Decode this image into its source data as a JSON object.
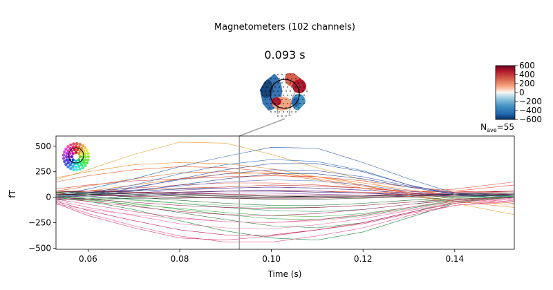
{
  "figure": {
    "title": "Magnetometers (102 channels)",
    "time_label": "0.093 s"
  },
  "colorbar": {
    "ticks": [
      "600",
      "400",
      "200",
      "0",
      "−200",
      "−400",
      "−600"
    ],
    "values": [
      600,
      400,
      200,
      0,
      -200,
      -400,
      -600
    ],
    "colormap": "RdBu_r",
    "vmin": -600,
    "vmax": 600
  },
  "nave": {
    "prefix": "N",
    "sub": "ave",
    "value": "=55"
  },
  "topomap_colors": {
    "positive": "#b2182b",
    "negative": "#2166ac",
    "neutral": "#f7f7f7"
  },
  "chart_data": {
    "type": "line",
    "title": "",
    "xlabel": "Time (s)",
    "ylabel": "fT",
    "xlim": [
      0.053,
      0.153
    ],
    "ylim": [
      -510,
      600
    ],
    "x_ticks": [
      0.06,
      0.08,
      0.1,
      0.12,
      0.14
    ],
    "x_tick_labels": [
      "0.06",
      "0.08",
      "0.10",
      "0.12",
      "0.14"
    ],
    "y_ticks": [
      500,
      250,
      0,
      -250,
      -500
    ],
    "y_tick_labels": [
      "500",
      "250",
      "0",
      "−250",
      "−500"
    ],
    "cursor_time": 0.093,
    "x": [
      0.053,
      0.06,
      0.07,
      0.08,
      0.09,
      0.1,
      0.11,
      0.12,
      0.13,
      0.14,
      0.153
    ],
    "series": [
      {
        "color": "#e8a030",
        "values": [
          170,
          270,
          420,
          540,
          530,
          420,
          290,
          170,
          30,
          -60,
          -170
        ]
      },
      {
        "color": "#f08a20",
        "values": [
          190,
          250,
          320,
          340,
          330,
          280,
          200,
          120,
          30,
          -40,
          -100
        ]
      },
      {
        "color": "#e85a2a",
        "values": [
          150,
          210,
          270,
          300,
          290,
          250,
          180,
          110,
          40,
          -10,
          -60
        ]
      },
      {
        "color": "#d83a30",
        "values": [
          80,
          120,
          160,
          180,
          200,
          210,
          200,
          160,
          100,
          60,
          40
        ]
      },
      {
        "color": "#e06a20",
        "values": [
          60,
          110,
          180,
          240,
          250,
          230,
          170,
          90,
          10,
          -40,
          -70
        ]
      },
      {
        "color": "#ff7a1a",
        "values": [
          30,
          60,
          120,
          180,
          230,
          240,
          200,
          140,
          70,
          20,
          20
        ]
      },
      {
        "color": "#c0302a",
        "values": [
          60,
          60,
          70,
          90,
          100,
          120,
          110,
          90,
          60,
          50,
          60
        ]
      },
      {
        "color": "#ef4a30",
        "values": [
          20,
          30,
          40,
          50,
          60,
          60,
          60,
          50,
          40,
          60,
          120
        ]
      },
      {
        "color": "#e34d3a",
        "values": [
          50,
          60,
          90,
          120,
          140,
          140,
          120,
          90,
          50,
          80,
          150
        ]
      },
      {
        "color": "#2b5fa8",
        "values": [
          20,
          80,
          180,
          300,
          400,
          490,
          480,
          340,
          180,
          40,
          0
        ]
      },
      {
        "color": "#2f6fbf",
        "values": [
          0,
          40,
          120,
          230,
          320,
          370,
          350,
          260,
          120,
          20,
          -10
        ]
      },
      {
        "color": "#3a4fa0",
        "values": [
          -10,
          20,
          90,
          180,
          270,
          330,
          330,
          250,
          120,
          30,
          0
        ]
      },
      {
        "color": "#4a5fb0",
        "values": [
          10,
          40,
          100,
          170,
          230,
          270,
          260,
          200,
          110,
          40,
          20
        ]
      },
      {
        "color": "#2c4a8c",
        "values": [
          0,
          20,
          60,
          120,
          180,
          230,
          230,
          180,
          100,
          30,
          10
        ]
      },
      {
        "color": "#5a6ac0",
        "values": [
          20,
          40,
          70,
          110,
          150,
          170,
          160,
          120,
          60,
          20,
          10
        ]
      },
      {
        "color": "#1f3f7a",
        "values": [
          40,
          50,
          60,
          80,
          90,
          100,
          90,
          70,
          40,
          20,
          20
        ]
      },
      {
        "color": "#7a4aa8",
        "values": [
          10,
          20,
          40,
          70,
          90,
          100,
          90,
          70,
          40,
          20,
          30
        ]
      },
      {
        "color": "#6a3a98",
        "values": [
          -20,
          -10,
          10,
          40,
          60,
          70,
          60,
          40,
          20,
          10,
          20
        ]
      },
      {
        "color": "#4a2a78",
        "values": [
          30,
          30,
          40,
          50,
          60,
          60,
          50,
          40,
          30,
          30,
          40
        ]
      },
      {
        "color": "#8a5ab8",
        "values": [
          0,
          10,
          20,
          30,
          40,
          40,
          30,
          20,
          10,
          20,
          30
        ]
      },
      {
        "color": "#1a1a1a",
        "values": [
          30,
          30,
          20,
          20,
          10,
          0,
          0,
          0,
          10,
          20,
          30
        ]
      },
      {
        "color": "#333333",
        "values": [
          60,
          50,
          40,
          30,
          20,
          10,
          10,
          10,
          20,
          30,
          40
        ]
      },
      {
        "color": "#2d2d2d",
        "values": [
          -20,
          -20,
          -10,
          -10,
          0,
          0,
          10,
          10,
          20,
          30,
          40
        ]
      },
      {
        "color": "#3a5a3a",
        "values": [
          40,
          40,
          30,
          10,
          -10,
          -20,
          -20,
          -10,
          0,
          10,
          20
        ]
      },
      {
        "color": "#2e7d32",
        "values": [
          10,
          -20,
          -80,
          -150,
          -220,
          -280,
          -300,
          -250,
          -150,
          -50,
          0
        ]
      },
      {
        "color": "#1b8a3a",
        "values": [
          0,
          -40,
          -120,
          -230,
          -330,
          -400,
          -420,
          -340,
          -200,
          -60,
          10
        ]
      },
      {
        "color": "#3aa040",
        "values": [
          20,
          -10,
          -60,
          -120,
          -170,
          -210,
          -220,
          -180,
          -110,
          -40,
          0
        ]
      },
      {
        "color": "#4cb050",
        "values": [
          -10,
          -30,
          -70,
          -110,
          -150,
          -180,
          -190,
          -160,
          -100,
          -30,
          10
        ]
      },
      {
        "color": "#2a9a60",
        "values": [
          30,
          10,
          -20,
          -60,
          -100,
          -130,
          -140,
          -120,
          -70,
          -20,
          10
        ]
      },
      {
        "color": "#5ab860",
        "values": [
          0,
          -10,
          -30,
          -60,
          -80,
          -100,
          -100,
          -80,
          -50,
          -10,
          10
        ]
      },
      {
        "color": "#1f6b2a",
        "values": [
          50,
          30,
          0,
          -30,
          -60,
          -80,
          -80,
          -60,
          -30,
          0,
          20
        ]
      },
      {
        "color": "#d8306a",
        "values": [
          -60,
          -180,
          -300,
          -400,
          -420,
          -380,
          -320,
          -260,
          -160,
          -80,
          -40
        ]
      },
      {
        "color": "#e0508a",
        "values": [
          -50,
          -160,
          -280,
          -380,
          -440,
          -440,
          -380,
          -300,
          -180,
          -80,
          -30
        ]
      },
      {
        "color": "#c0205a",
        "values": [
          -40,
          -130,
          -230,
          -320,
          -370,
          -370,
          -320,
          -250,
          -150,
          -60,
          -20
        ]
      },
      {
        "color": "#e86aa0",
        "values": [
          -30,
          -100,
          -180,
          -260,
          -300,
          -310,
          -270,
          -210,
          -130,
          -60,
          -20
        ]
      },
      {
        "color": "#d04080",
        "values": [
          -20,
          -70,
          -140,
          -200,
          -240,
          -250,
          -220,
          -170,
          -100,
          -40,
          -10
        ]
      },
      {
        "color": "#b8306a",
        "values": [
          -10,
          -40,
          -90,
          -140,
          -170,
          -180,
          -160,
          -120,
          -70,
          -30,
          0
        ]
      },
      {
        "color": "#a02050",
        "values": [
          0,
          -20,
          -50,
          -80,
          -100,
          -110,
          -100,
          -80,
          -50,
          -20,
          0
        ]
      },
      {
        "color": "#f08ab0",
        "values": [
          -70,
          -120,
          -170,
          -210,
          -240,
          -250,
          -230,
          -190,
          -120,
          -50,
          -10
        ]
      },
      {
        "color": "#8a1a3a",
        "values": [
          30,
          20,
          10,
          0,
          -10,
          -10,
          -10,
          0,
          10,
          20,
          30
        ]
      },
      {
        "color": "#a01830",
        "values": [
          60,
          60,
          50,
          40,
          30,
          20,
          20,
          20,
          30,
          40,
          60
        ]
      }
    ]
  }
}
